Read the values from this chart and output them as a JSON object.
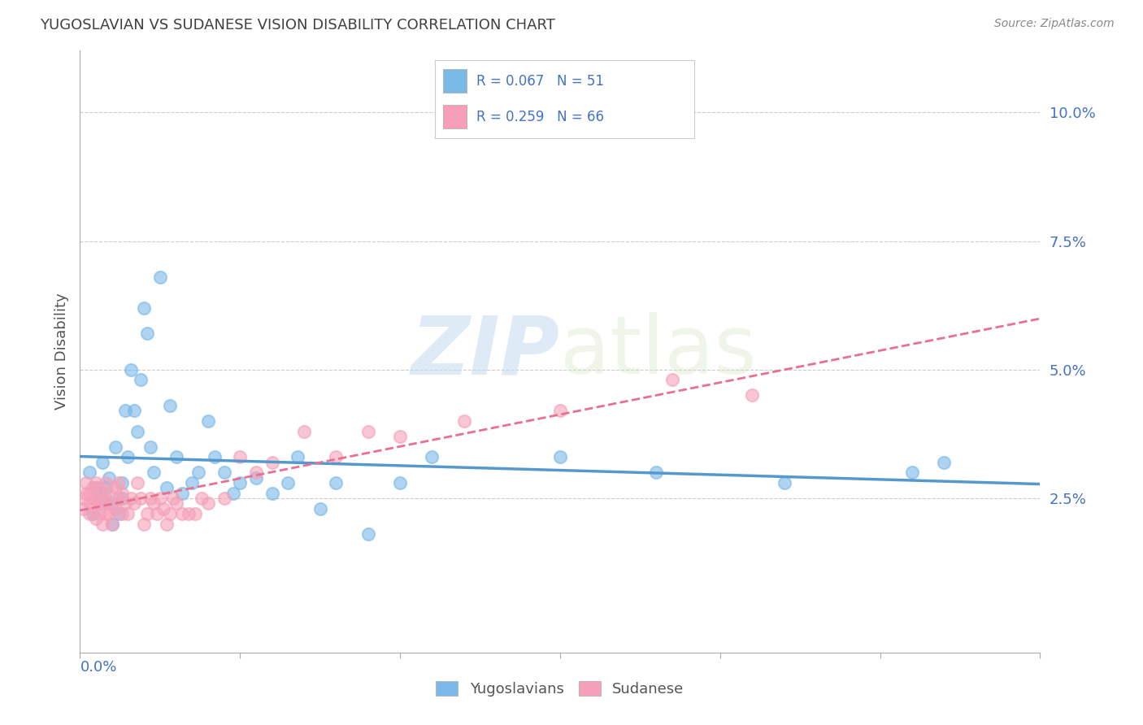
{
  "title": "YUGOSLAVIAN VS SUDANESE VISION DISABILITY CORRELATION CHART",
  "source": "Source: ZipAtlas.com",
  "ylabel": "Vision Disability",
  "xlim": [
    0.0,
    0.3
  ],
  "ylim": [
    -0.005,
    0.112
  ],
  "yticks": [
    0.025,
    0.05,
    0.075,
    0.1
  ],
  "ytick_labels": [
    "2.5%",
    "5.0%",
    "7.5%",
    "10.0%"
  ],
  "xtick_positions": [
    0.0,
    0.05,
    0.1,
    0.15,
    0.2,
    0.25,
    0.3
  ],
  "legend_r_yugo": "R = 0.067",
  "legend_n_yugo": "N = 51",
  "legend_r_suda": "R = 0.259",
  "legend_n_suda": "N = 66",
  "watermark_zip": "ZIP",
  "watermark_atlas": "atlas",
  "blue_color": "#7ab8e8",
  "pink_color": "#f5a0b8",
  "blue_line_color": "#5599cc",
  "pink_line_color": "#e87090",
  "background_color": "#ffffff",
  "grid_color": "#cccccc",
  "yugo_scatter_x": [
    0.003,
    0.004,
    0.005,
    0.006,
    0.007,
    0.007,
    0.008,
    0.008,
    0.009,
    0.01,
    0.01,
    0.011,
    0.012,
    0.013,
    0.013,
    0.014,
    0.015,
    0.016,
    0.017,
    0.018,
    0.019,
    0.02,
    0.021,
    0.022,
    0.023,
    0.025,
    0.027,
    0.028,
    0.03,
    0.032,
    0.035,
    0.037,
    0.04,
    0.042,
    0.045,
    0.048,
    0.05,
    0.055,
    0.06,
    0.065,
    0.068,
    0.075,
    0.08,
    0.09,
    0.1,
    0.11,
    0.15,
    0.18,
    0.22,
    0.26,
    0.27
  ],
  "yugo_scatter_y": [
    0.03,
    0.022,
    0.027,
    0.026,
    0.032,
    0.025,
    0.027,
    0.024,
    0.029,
    0.024,
    0.02,
    0.035,
    0.022,
    0.028,
    0.025,
    0.042,
    0.033,
    0.05,
    0.042,
    0.038,
    0.048,
    0.062,
    0.057,
    0.035,
    0.03,
    0.068,
    0.027,
    0.043,
    0.033,
    0.026,
    0.028,
    0.03,
    0.04,
    0.033,
    0.03,
    0.026,
    0.028,
    0.029,
    0.026,
    0.028,
    0.033,
    0.023,
    0.028,
    0.018,
    0.028,
    0.033,
    0.033,
    0.03,
    0.028,
    0.03,
    0.032
  ],
  "suda_scatter_x": [
    0.001,
    0.001,
    0.002,
    0.002,
    0.003,
    0.003,
    0.003,
    0.004,
    0.004,
    0.004,
    0.005,
    0.005,
    0.005,
    0.006,
    0.006,
    0.006,
    0.007,
    0.007,
    0.007,
    0.008,
    0.008,
    0.008,
    0.009,
    0.009,
    0.01,
    0.01,
    0.011,
    0.011,
    0.012,
    0.012,
    0.013,
    0.013,
    0.014,
    0.015,
    0.016,
    0.017,
    0.018,
    0.019,
    0.02,
    0.021,
    0.022,
    0.023,
    0.024,
    0.025,
    0.026,
    0.027,
    0.028,
    0.029,
    0.03,
    0.032,
    0.034,
    0.036,
    0.038,
    0.04,
    0.045,
    0.05,
    0.055,
    0.06,
    0.07,
    0.08,
    0.09,
    0.1,
    0.12,
    0.15,
    0.185,
    0.21
  ],
  "suda_scatter_y": [
    0.025,
    0.023,
    0.026,
    0.028,
    0.024,
    0.026,
    0.022,
    0.023,
    0.027,
    0.025,
    0.021,
    0.025,
    0.028,
    0.022,
    0.024,
    0.027,
    0.02,
    0.024,
    0.026,
    0.022,
    0.025,
    0.028,
    0.022,
    0.026,
    0.02,
    0.024,
    0.023,
    0.027,
    0.025,
    0.028,
    0.022,
    0.026,
    0.024,
    0.022,
    0.025,
    0.024,
    0.028,
    0.025,
    0.02,
    0.022,
    0.025,
    0.024,
    0.022,
    0.025,
    0.023,
    0.02,
    0.022,
    0.025,
    0.024,
    0.022,
    0.022,
    0.022,
    0.025,
    0.024,
    0.025,
    0.033,
    0.03,
    0.032,
    0.038,
    0.033,
    0.038,
    0.037,
    0.04,
    0.042,
    0.048,
    0.045
  ]
}
